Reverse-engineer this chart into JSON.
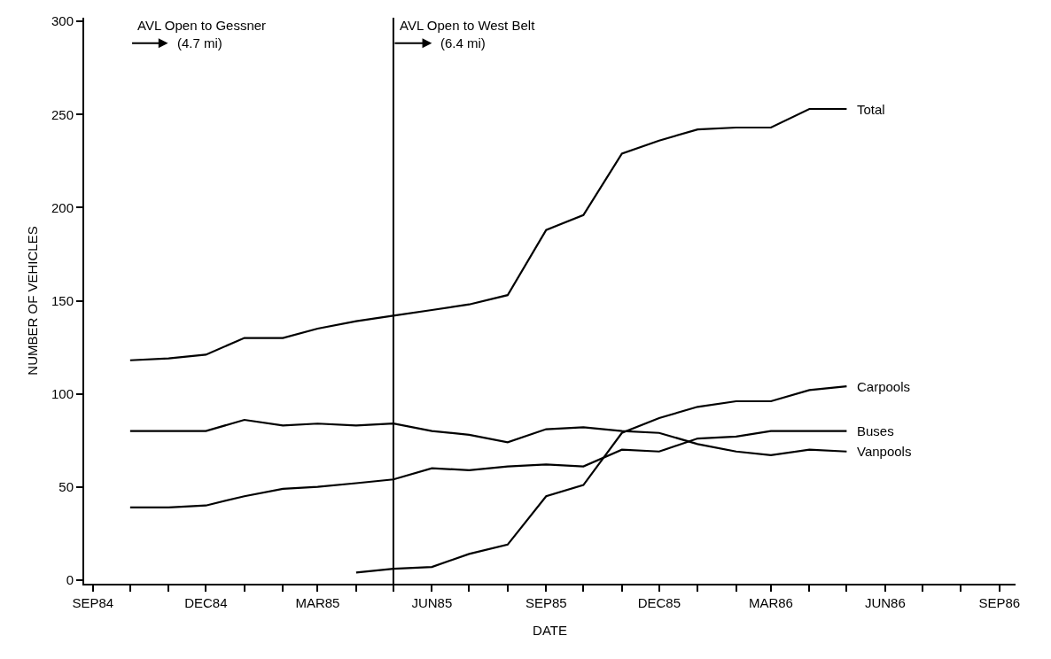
{
  "chart_data": {
    "type": "line",
    "xlabel": "DATE",
    "ylabel": "NUMBER OF VEHICLES",
    "x": [
      "1984-10",
      "1984-11",
      "1984-12",
      "1985-01",
      "1985-02",
      "1985-03",
      "1985-04",
      "1985-05",
      "1985-06",
      "1985-07",
      "1985-08",
      "1985-09",
      "1985-10",
      "1985-11",
      "1985-12",
      "1986-01",
      "1986-02",
      "1986-03",
      "1986-04",
      "1986-05"
    ],
    "series": [
      {
        "name": "Total",
        "color": "#000000",
        "values": [
          118,
          119,
          121,
          130,
          130,
          135,
          139,
          142,
          145,
          148,
          153,
          188,
          196,
          229,
          236,
          242,
          243,
          243,
          253,
          253
        ]
      },
      {
        "name": "Carpools",
        "color": "#000000",
        "values": [
          null,
          null,
          null,
          null,
          null,
          null,
          4,
          6,
          7,
          14,
          19,
          45,
          51,
          79,
          87,
          93,
          96,
          96,
          102,
          104
        ]
      },
      {
        "name": "Buses",
        "color": "#000000",
        "values": [
          39,
          39,
          40,
          45,
          49,
          50,
          52,
          54,
          60,
          59,
          61,
          62,
          61,
          70,
          69,
          76,
          77,
          80,
          80,
          80
        ]
      },
      {
        "name": "Vanpools",
        "color": "#000000",
        "values": [
          80,
          80,
          80,
          86,
          83,
          84,
          83,
          84,
          80,
          78,
          74,
          81,
          82,
          80,
          79,
          73,
          69,
          67,
          70,
          69
        ]
      }
    ],
    "xlim": [
      "1984-08-25",
      "1986-09-14"
    ],
    "xticks": [
      {
        "value": "1984-09",
        "label": "SEP84"
      },
      {
        "value": "1984-10",
        "label": null
      },
      {
        "value": "1984-11",
        "label": null
      },
      {
        "value": "1984-12",
        "label": "DEC84"
      },
      {
        "value": "1985-01",
        "label": null
      },
      {
        "value": "1985-02",
        "label": null
      },
      {
        "value": "1985-03",
        "label": "MAR85"
      },
      {
        "value": "1985-04",
        "label": null
      },
      {
        "value": "1985-05",
        "label": null
      },
      {
        "value": "1985-06",
        "label": "JUN85"
      },
      {
        "value": "1985-07",
        "label": null
      },
      {
        "value": "1985-08",
        "label": null
      },
      {
        "value": "1985-09",
        "label": "SEP85"
      },
      {
        "value": "1985-10",
        "label": null
      },
      {
        "value": "1985-11",
        "label": null
      },
      {
        "value": "1985-12",
        "label": "DEC85"
      },
      {
        "value": "1986-01",
        "label": null
      },
      {
        "value": "1986-02",
        "label": null
      },
      {
        "value": "1986-03",
        "label": "MAR86"
      },
      {
        "value": "1986-04",
        "label": null
      },
      {
        "value": "1986-05",
        "label": null
      },
      {
        "value": "1986-06",
        "label": "JUN86"
      },
      {
        "value": "1986-07",
        "label": null
      },
      {
        "value": "1986-08",
        "label": null
      },
      {
        "value": "1986-09",
        "label": "SEP86"
      }
    ],
    "ylim": [
      -2,
      302
    ],
    "yticks": [
      0,
      50,
      100,
      150,
      200,
      250,
      300
    ],
    "ref_lines": [
      {
        "axis": "x",
        "value": "1985-05-01",
        "label": "AVL Open to West Belt\n(6.4 mi)",
        "color": "#000000"
      }
    ],
    "annotations": [
      "AVL Open to Gessner\n(4.7 mi)"
    ],
    "legend": false,
    "marker": "none",
    "line_style": "solid"
  }
}
